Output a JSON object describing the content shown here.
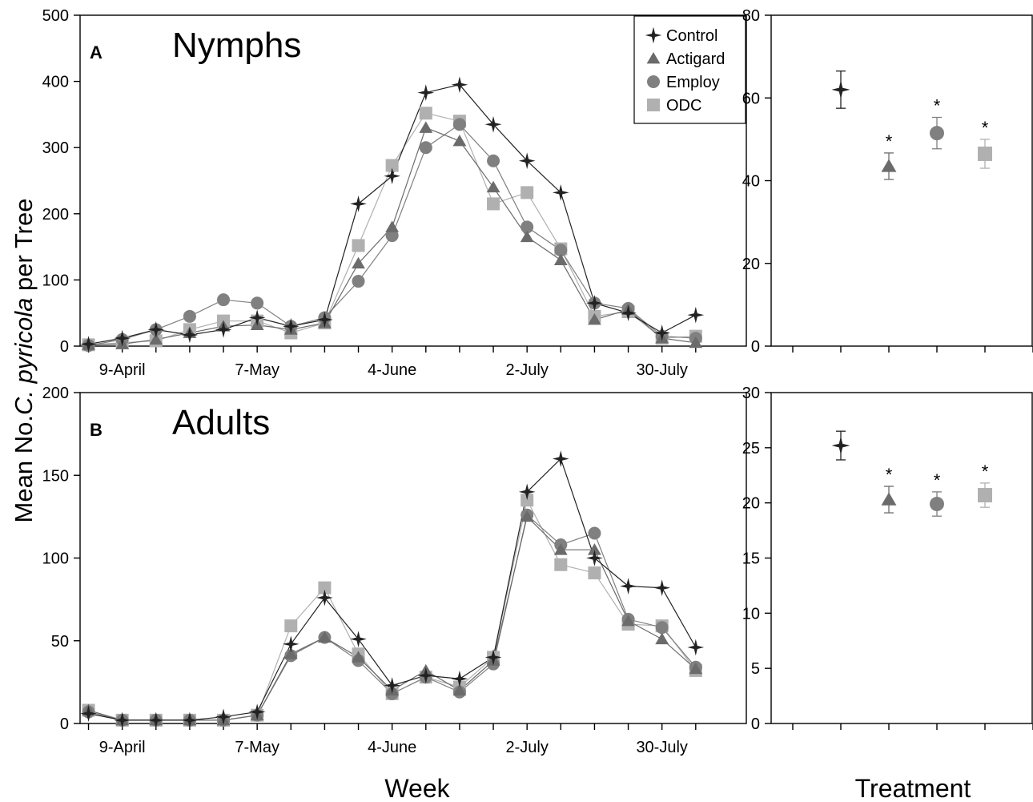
{
  "figure": {
    "y_axis_label_prefix": "Mean No.",
    "y_axis_label_italic": "C. pyricola",
    "y_axis_label_suffix": " per Tree",
    "x_label_week": "Week",
    "x_label_treatment": "Treatment"
  },
  "colors": {
    "Control": "#222222",
    "Actigard": "#6b6b6b",
    "Employ": "#808080",
    "ODC": "#b0b0b0"
  },
  "chart_data": [
    {
      "type": "line",
      "panel_letter": "A",
      "title": "Nymphs",
      "x": [
        1,
        2,
        3,
        4,
        5,
        6,
        7,
        8,
        9,
        10,
        11,
        12,
        13,
        14,
        15,
        16,
        17,
        18,
        19
      ],
      "x_tick_labels": [
        "9-April",
        "7-May",
        "4-June",
        "2-July",
        "30-July"
      ],
      "x_tick_positions": [
        2,
        6,
        10,
        14,
        18
      ],
      "ylim": [
        0,
        500
      ],
      "yticks": [
        0,
        100,
        200,
        300,
        400,
        500
      ],
      "legend_position": "top-right",
      "series": [
        {
          "name": "Control",
          "marker": "star",
          "values": [
            3,
            12,
            25,
            17,
            25,
            43,
            30,
            40,
            215,
            257,
            383,
            395,
            335,
            280,
            232,
            65,
            50,
            20,
            47
          ]
        },
        {
          "name": "Actigard",
          "marker": "triangle",
          "values": [
            2,
            3,
            10,
            20,
            30,
            32,
            25,
            35,
            125,
            180,
            330,
            310,
            240,
            165,
            130,
            40,
            55,
            12,
            5
          ]
        },
        {
          "name": "Employ",
          "marker": "circle",
          "values": [
            1,
            10,
            25,
            45,
            70,
            65,
            30,
            43,
            98,
            167,
            300,
            335,
            280,
            180,
            145,
            65,
            57,
            15,
            12
          ]
        },
        {
          "name": "ODC",
          "marker": "square",
          "values": [
            2,
            5,
            8,
            25,
            38,
            38,
            20,
            35,
            152,
            273,
            352,
            340,
            215,
            232,
            147,
            45,
            52,
            12,
            15
          ]
        }
      ]
    },
    {
      "type": "scatter",
      "panel_letter": "",
      "title": "",
      "categories": [
        "Control",
        "Actigard",
        "Employ",
        "ODC"
      ],
      "ylim": [
        0,
        80
      ],
      "yticks": [
        0,
        20,
        40,
        60,
        80
      ],
      "series": [
        {
          "name": "Control",
          "marker": "star",
          "value": 62,
          "error": 4.5,
          "significant": false
        },
        {
          "name": "Actigard",
          "marker": "triangle",
          "value": 43.5,
          "error": 3.2,
          "significant": true
        },
        {
          "name": "Employ",
          "marker": "circle",
          "value": 51.5,
          "error": 3.8,
          "significant": true
        },
        {
          "name": "ODC",
          "marker": "square",
          "value": 46.5,
          "error": 3.5,
          "significant": true
        }
      ],
      "significance_mark": "*"
    },
    {
      "type": "line",
      "panel_letter": "B",
      "title": "Adults",
      "x": [
        1,
        2,
        3,
        4,
        5,
        6,
        7,
        8,
        9,
        10,
        11,
        12,
        13,
        14,
        15,
        16,
        17,
        18,
        19
      ],
      "x_tick_labels": [
        "9-April",
        "7-May",
        "4-June",
        "2-July",
        "30-July"
      ],
      "x_tick_positions": [
        2,
        6,
        10,
        14,
        18
      ],
      "ylim": [
        0,
        200
      ],
      "yticks": [
        0,
        50,
        100,
        150,
        200
      ],
      "series": [
        {
          "name": "Control",
          "marker": "star",
          "values": [
            6,
            2,
            2,
            2,
            4,
            7,
            48,
            76,
            51,
            23,
            29,
            27,
            40,
            140,
            160,
            100,
            83,
            82,
            46
          ]
        },
        {
          "name": "Actigard",
          "marker": "triangle",
          "values": [
            8,
            2,
            2,
            2,
            2,
            5,
            42,
            52,
            40,
            20,
            32,
            20,
            38,
            125,
            105,
            105,
            62,
            51,
            33
          ]
        },
        {
          "name": "Employ",
          "marker": "circle",
          "values": [
            7,
            2,
            2,
            2,
            2,
            5,
            41,
            52,
            38,
            18,
            28,
            19,
            36,
            126,
            108,
            115,
            63,
            58,
            34
          ]
        },
        {
          "name": "ODC",
          "marker": "square",
          "values": [
            8,
            2,
            2,
            2,
            2,
            5,
            59,
            82,
            42,
            18,
            28,
            22,
            40,
            135,
            96,
            91,
            60,
            59,
            32
          ]
        }
      ]
    },
    {
      "type": "scatter",
      "panel_letter": "",
      "title": "",
      "categories": [
        "Control",
        "Actigard",
        "Employ",
        "ODC"
      ],
      "ylim": [
        0,
        30
      ],
      "yticks": [
        0,
        5,
        10,
        15,
        20,
        25,
        30
      ],
      "series": [
        {
          "name": "Control",
          "marker": "star",
          "value": 25.2,
          "error": 1.3,
          "significant": false
        },
        {
          "name": "Actigard",
          "marker": "triangle",
          "value": 20.3,
          "error": 1.2,
          "significant": true
        },
        {
          "name": "Employ",
          "marker": "circle",
          "value": 19.9,
          "error": 1.1,
          "significant": true
        },
        {
          "name": "ODC",
          "marker": "square",
          "value": 20.7,
          "error": 1.1,
          "significant": true
        }
      ],
      "significance_mark": "*"
    }
  ]
}
